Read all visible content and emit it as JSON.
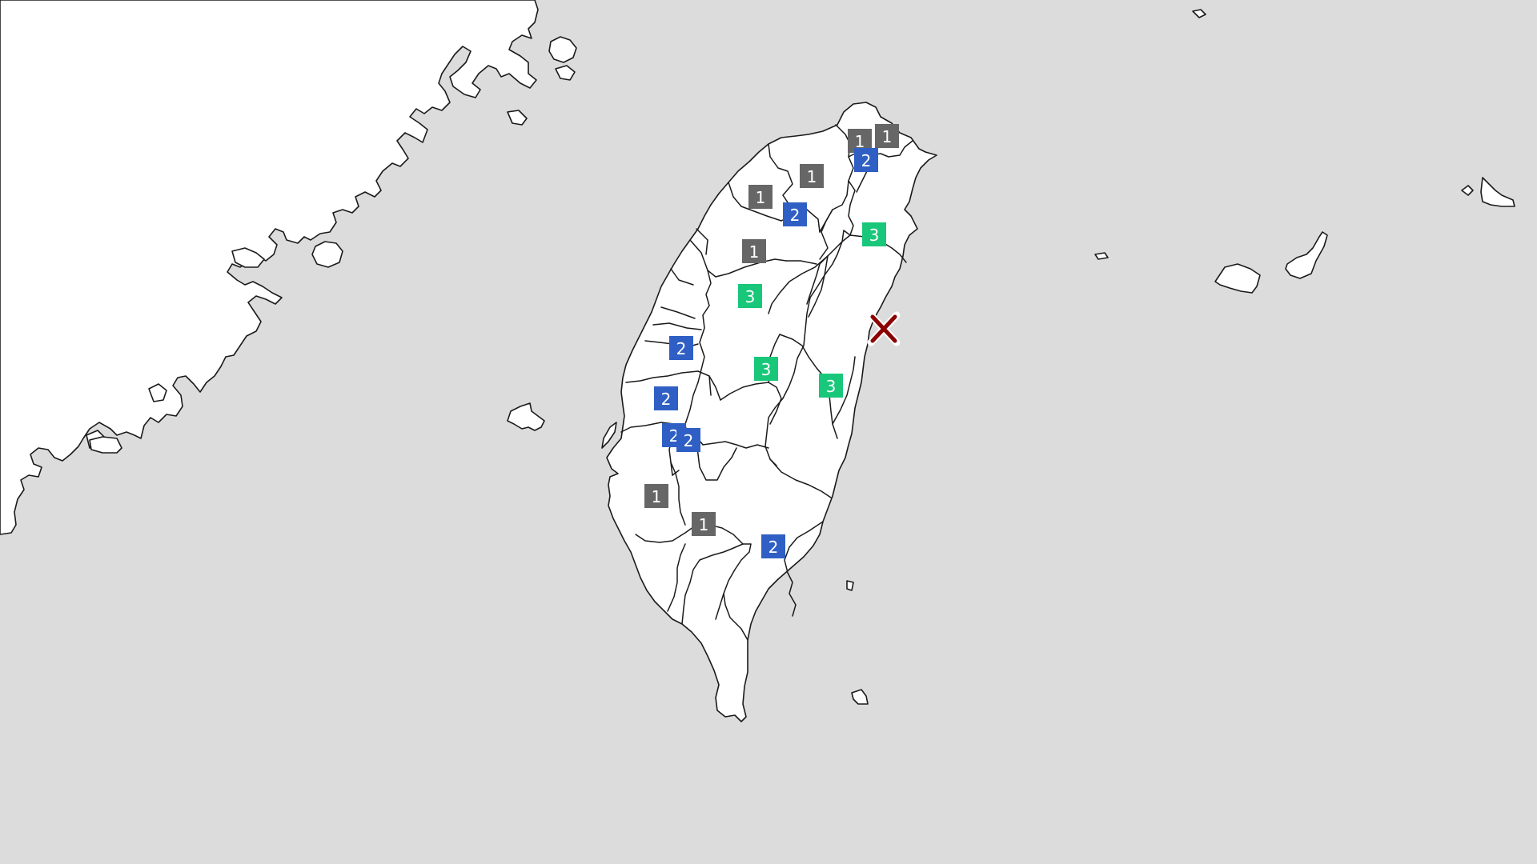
{
  "map": {
    "colors": {
      "sea": "#dcdcdc",
      "land": "#ffffff",
      "outline": "#1a1a1a",
      "intensity_1": "#666666",
      "intensity_2": "#2f5fc4",
      "intensity_3": "#19c77a",
      "epicenter": "#8b0000"
    },
    "epicenter": {
      "icon": "x-mark-icon"
    },
    "intensity_markers": [
      {
        "value": "1"
      },
      {
        "value": "1"
      },
      {
        "value": "2"
      },
      {
        "value": "1"
      },
      {
        "value": "1"
      },
      {
        "value": "2"
      },
      {
        "value": "3"
      },
      {
        "value": "1"
      },
      {
        "value": "3"
      },
      {
        "value": "2"
      },
      {
        "value": "3"
      },
      {
        "value": "3"
      },
      {
        "value": "2"
      },
      {
        "value": "2"
      },
      {
        "value": "2"
      },
      {
        "value": "1"
      },
      {
        "value": "1"
      },
      {
        "value": "2"
      }
    ]
  }
}
